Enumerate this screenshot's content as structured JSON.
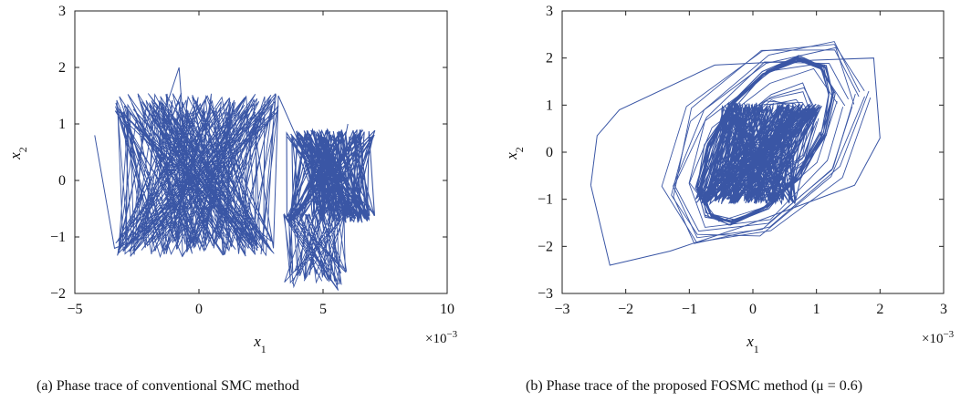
{
  "chart_data": [
    {
      "type": "line",
      "panel": "a",
      "caption": "(a)  Phase trace of conventional SMC method",
      "xlabel": "x1",
      "ylabel": "x2",
      "x_multiplier": "×10−3",
      "xlim": [
        -5,
        10
      ],
      "ylim": [
        -2,
        3
      ],
      "xticks": [
        "−5",
        "0",
        "5",
        "10"
      ],
      "yticks": [
        "−2",
        "−1",
        "0",
        "1",
        "2",
        "3"
      ],
      "line_color": "#3a56a5",
      "series": [
        {
          "x": [
            -4.2,
            -3.4,
            -2.2,
            -1.4,
            -0.8,
            -0.6,
            -0.2,
            0.2,
            0.6,
            1.2,
            1.6,
            2.2,
            3.0,
            3.2,
            4.2,
            5.2,
            6.0
          ],
          "y": [
            0.8,
            -1.2,
            -1.0,
            1.2,
            2.0,
            0.8,
            -1.2,
            1.3,
            -1.2,
            0.9,
            -1.3,
            1.0,
            -1.2,
            1.5,
            0.5,
            -0.8,
            1.0
          ]
        }
      ]
    },
    {
      "type": "line",
      "panel": "b",
      "caption": "(b)  Phase trace of the proposed FOSMC method (μ = 0.6)",
      "xlabel": "x1",
      "ylabel": "x2",
      "x_multiplier": "×10−3",
      "xlim": [
        -3,
        3
      ],
      "ylim": [
        -3,
        3
      ],
      "xticks": [
        "−3",
        "−2",
        "−1",
        "0",
        "1",
        "2",
        "3"
      ],
      "yticks": [
        "−3",
        "−2",
        "−1",
        "0",
        "1",
        "2",
        "3"
      ],
      "line_color": "#3a56a5",
      "series": [
        {
          "x": [
            -2.55,
            -2.25,
            -1.3,
            -0.2,
            1.6,
            2.0,
            1.9,
            0.9,
            -0.6,
            -2.1,
            -2.45,
            -2.55
          ],
          "y": [
            -0.7,
            -2.4,
            -2.1,
            -1.6,
            -0.7,
            0.3,
            2.0,
            1.95,
            1.85,
            0.9,
            0.35,
            -0.7
          ]
        }
      ]
    }
  ]
}
